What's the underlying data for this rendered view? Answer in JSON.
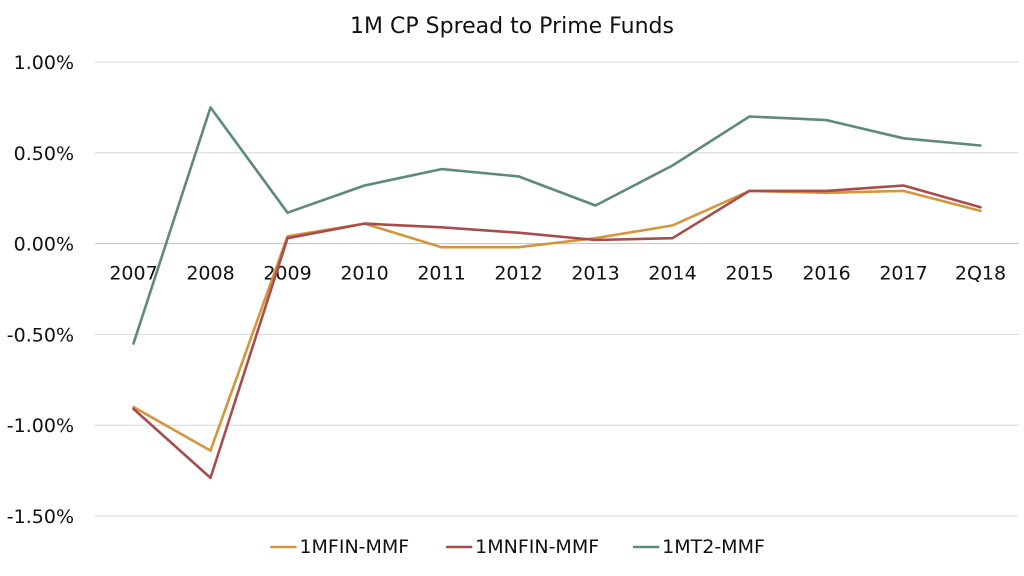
{
  "chart_data": {
    "type": "line",
    "title": "1M CP Spread to Prime Funds",
    "xlabel": "",
    "ylabel": "",
    "categories": [
      "2007",
      "2008",
      "2009",
      "2010",
      "2011",
      "2012",
      "2013",
      "2014",
      "2015",
      "2016",
      "2017",
      "2Q18"
    ],
    "y_ticks": [
      "1.00%",
      "0.50%",
      "0.00%",
      "-0.50%",
      "-1.00%",
      "-1.50%"
    ],
    "y_tick_values": [
      1.0,
      0.5,
      0.0,
      -0.5,
      -1.0,
      -1.5
    ],
    "ylim": [
      -1.5,
      1.0
    ],
    "grid": true,
    "legend_position": "bottom",
    "series": [
      {
        "name": "1MFIN-MMF",
        "color": "#D4963C",
        "values": [
          -0.9,
          -1.14,
          0.04,
          0.11,
          -0.02,
          -0.02,
          0.03,
          0.1,
          0.29,
          0.28,
          0.29,
          0.18
        ]
      },
      {
        "name": "1MNFIN-MMF",
        "color": "#A84D4D",
        "values": [
          -0.91,
          -1.29,
          0.03,
          0.11,
          0.09,
          0.06,
          0.02,
          0.03,
          0.29,
          0.29,
          0.32,
          0.2
        ]
      },
      {
        "name": "1MT2-MMF",
        "color": "#5E8B73",
        "values": [
          -0.55,
          0.75,
          0.17,
          0.32,
          0.41,
          0.37,
          0.21,
          0.43,
          0.7,
          0.68,
          0.58,
          0.54
        ]
      }
    ]
  }
}
